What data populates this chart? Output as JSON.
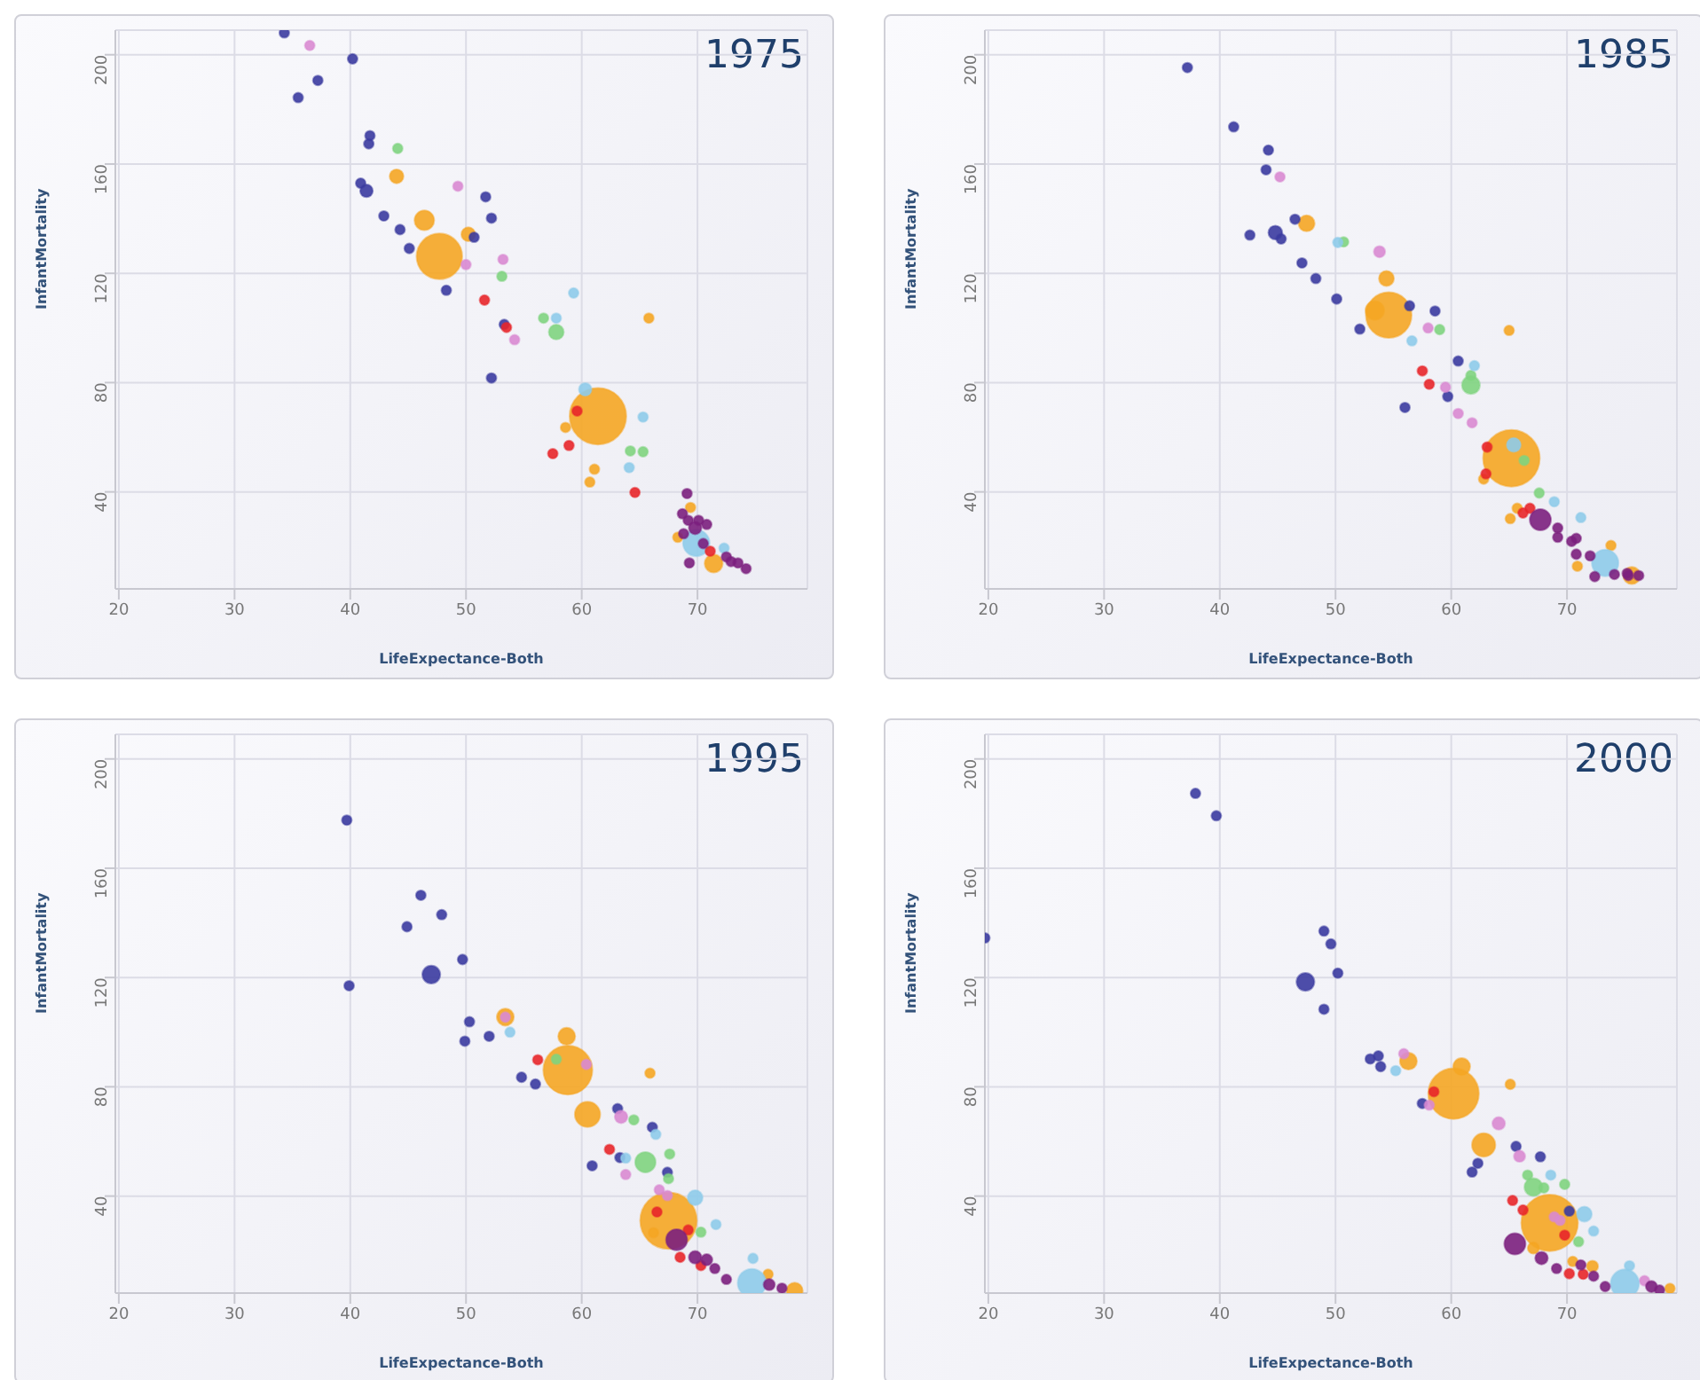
{
  "chart_data": [
    {
      "type": "bubble",
      "title": "1975",
      "xlabel": "LifeExpectance-Both",
      "ylabel": "InfantMortality",
      "xlim": [
        19.7,
        79.5
      ],
      "ylim": [
        4.5,
        209
      ],
      "xticks": [
        20,
        30,
        40,
        50,
        60,
        70
      ],
      "yticks": [
        40,
        80,
        120,
        160,
        200
      ],
      "grid": true,
      "series": [
        {
          "color": "#f5a623",
          "x": [
            44,
            46.4,
            47.7,
            50.2,
            61.4,
            58.6,
            61.1,
            60.7,
            65.8,
            69.4,
            68.3,
            71.4
          ],
          "values": [
            155.5,
            139.4,
            126.2,
            134.3,
            67.7,
            63.6,
            48.3,
            43.6,
            103.6,
            34.3,
            23.4,
            13.8
          ],
          "sizes": [
            0.06,
            0.12,
            0.65,
            0.06,
            1,
            0.03,
            0.03,
            0.03,
            0.03,
            0.03,
            0.03,
            0.1
          ]
        },
        {
          "color": "#3b3ba0",
          "x": [
            34.3,
            40.2,
            37.2,
            35.5,
            41.7,
            41.6,
            40.9,
            41.4,
            42.9,
            44.3,
            45.1,
            51.7,
            52.2,
            50.7,
            48.3,
            53.3,
            52.2
          ],
          "values": [
            208,
            198.5,
            190.6,
            184.3,
            170.4,
            167.4,
            153,
            150.2,
            141,
            136,
            129.1,
            148,
            140.2,
            133.2,
            113.8,
            101.3,
            81.7
          ],
          "sizes": [
            0.03,
            0.03,
            0.03,
            0.03,
            0.03,
            0.03,
            0.03,
            0.05,
            0.03,
            0.03,
            0.03,
            0.03,
            0.03,
            0.03,
            0.03,
            0.03,
            0.03
          ]
        },
        {
          "color": "#d98ad2",
          "x": [
            36.5,
            49.3,
            50,
            53.2,
            54.2
          ],
          "values": [
            203.4,
            151.9,
            123.2,
            125.1,
            95.7
          ],
          "sizes": [
            0.03,
            0.03,
            0.03,
            0.03,
            0.03
          ]
        },
        {
          "color": "#7fd47f",
          "x": [
            44.1,
            53.1,
            56.7,
            57.8,
            64.2,
            65.3
          ],
          "values": [
            165.7,
            118.9,
            103.6,
            98.5,
            55,
            54.7
          ],
          "sizes": [
            0.03,
            0.03,
            0.03,
            0.07,
            0.03,
            0.03
          ]
        },
        {
          "color": "#8ecbea",
          "x": [
            59.3,
            57.8,
            60.3,
            65.3,
            64.1,
            72.3,
            69.9
          ],
          "values": [
            112.8,
            103.6,
            77.5,
            67.4,
            48.9,
            19.4,
            21.3
          ],
          "sizes": [
            0.03,
            0.03,
            0.05,
            0.03,
            0.03,
            0.03,
            0.22
          ]
        },
        {
          "color": "#e8262a",
          "x": [
            51.6,
            53.5,
            59.6,
            58.9,
            57.5,
            64.6,
            71.1
          ],
          "values": [
            110.2,
            100.2,
            69.6,
            57,
            54,
            39.8,
            18.3
          ],
          "sizes": [
            0.03,
            0.03,
            0.03,
            0.03,
            0.03,
            0.03,
            0.03
          ]
        },
        {
          "color": "#7b1f7e",
          "x": [
            69.1,
            68.7,
            69.2,
            70.1,
            70.8,
            69.8,
            68.8,
            69.3,
            72.5,
            72.9,
            73.5,
            74.2,
            70.5
          ],
          "values": [
            39.4,
            32,
            29.6,
            29.6,
            28.1,
            26.8,
            24.7,
            14,
            16.2,
            14.5,
            14,
            11.9,
            21.1
          ],
          "sizes": [
            0.03,
            0.03,
            0.03,
            0.03,
            0.03,
            0.05,
            0.03,
            0.03,
            0.03,
            0.03,
            0.03,
            0.03,
            0.03
          ]
        }
      ]
    },
    {
      "type": "bubble",
      "title": "1985",
      "xlabel": "LifeExpectance-Both",
      "ylabel": "InfantMortality",
      "xlim": [
        19.7,
        79.5
      ],
      "ylim": [
        4.5,
        209
      ],
      "xticks": [
        20,
        30,
        40,
        50,
        60,
        70
      ],
      "yticks": [
        40,
        80,
        120,
        160,
        200
      ],
      "grid": true,
      "series": [
        {
          "color": "#f5a623",
          "x": [
            47.5,
            54.4,
            53.4,
            54.6,
            65,
            65.2,
            62.8,
            65.7,
            65.1,
            73.8,
            70.9,
            75.6
          ],
          "values": [
            138.3,
            118.1,
            106.4,
            104.7,
            99.1,
            52.3,
            44.7,
            34,
            30.2,
            20.4,
            12.8,
            9.4
          ],
          "sizes": [
            0.08,
            0.07,
            0.11,
            0.65,
            0.03,
            1,
            0.03,
            0.03,
            0.03,
            0.03,
            0.03,
            0.09
          ]
        },
        {
          "color": "#3b3ba0",
          "x": [
            37.2,
            41.2,
            44.2,
            44,
            46.5,
            42.6,
            44.8,
            45.3,
            47.1,
            48.3,
            50.1,
            56.4,
            58.6,
            52.1,
            60.6,
            59.7,
            56
          ],
          "values": [
            195.3,
            173.6,
            165.1,
            157.9,
            139.8,
            134,
            134.9,
            132.6,
            123.8,
            118.1,
            110.6,
            108.1,
            106.2,
            99.6,
            87.9,
            74.9,
            70.9
          ],
          "sizes": [
            0.03,
            0.03,
            0.03,
            0.03,
            0.03,
            0.03,
            0.06,
            0.03,
            0.03,
            0.03,
            0.03,
            0.03,
            0.03,
            0.03,
            0.03,
            0.03,
            0.03
          ]
        },
        {
          "color": "#d98ad2",
          "x": [
            45.2,
            53.8,
            58,
            59.5,
            60.6,
            61.8
          ],
          "values": [
            155.3,
            127.9,
            100,
            78.3,
            68.7,
            65.3
          ],
          "sizes": [
            0.03,
            0.04,
            0.03,
            0.03,
            0.03,
            0.03
          ]
        },
        {
          "color": "#7fd47f",
          "x": [
            50.7,
            59,
            61.7,
            61.7,
            66.3,
            67.6
          ],
          "values": [
            131.5,
            99.4,
            82.6,
            79.1,
            51.5,
            39.6
          ],
          "sizes": [
            0.03,
            0.03,
            0.03,
            0.1,
            0.03,
            0.03
          ]
        },
        {
          "color": "#8ecbea",
          "x": [
            50.2,
            56.6,
            62,
            65.4,
            68.9,
            71.2,
            73.3
          ],
          "values": [
            131.3,
            95.3,
            86.2,
            57.2,
            36.4,
            30.6,
            14
          ],
          "sizes": [
            0.03,
            0.03,
            0.03,
            0.06,
            0.03,
            0.03,
            0.22
          ]
        },
        {
          "color": "#e8262a",
          "x": [
            57.5,
            58.1,
            63.1,
            63,
            66.8,
            66.2
          ],
          "values": [
            84.3,
            79.4,
            56.4,
            46.6,
            34,
            32.3
          ],
          "sizes": [
            0.03,
            0.03,
            0.03,
            0.03,
            0.03,
            0.03
          ]
        },
        {
          "color": "#7b1f7e",
          "x": [
            67.7,
            69.2,
            69.2,
            70.4,
            70.8,
            70.8,
            72,
            72.4,
            74.1,
            75.3,
            76.2,
            75.2
          ],
          "values": [
            29.8,
            26.8,
            23.4,
            21.9,
            23,
            17.2,
            16.6,
            9,
            9.8,
            9.4,
            9.4,
            10.2
          ],
          "sizes": [
            0.14,
            0.03,
            0.03,
            0.03,
            0.03,
            0.03,
            0.03,
            0.03,
            0.03,
            0.03,
            0.03,
            0.03
          ]
        }
      ]
    },
    {
      "type": "bubble",
      "title": "1995",
      "xlabel": "LifeExpectance-Both",
      "ylabel": "InfantMortality",
      "xlim": [
        19.7,
        79.5
      ],
      "ylim": [
        4.5,
        209
      ],
      "xticks": [
        20,
        30,
        40,
        50,
        60,
        70
      ],
      "yticks": [
        40,
        80,
        120,
        160,
        200
      ],
      "grid": true,
      "series": [
        {
          "color": "#f5a623",
          "x": [
            53.4,
            58.7,
            58.8,
            60.5,
            65.9,
            67.5,
            66.2,
            76.1,
            78.4
          ],
          "values": [
            105.5,
            98.5,
            86.1,
            69.9,
            85,
            31,
            26.6,
            11.4,
            5.4
          ],
          "sizes": [
            0.09,
            0.09,
            0.75,
            0.2,
            0.03,
            1,
            0.03,
            0.03,
            0.08
          ]
        },
        {
          "color": "#3b3ba0",
          "x": [
            39.7,
            39.9,
            46.1,
            47.9,
            44.9,
            49.7,
            47,
            50.3,
            49.9,
            52,
            54.8,
            56,
            63.1,
            66.1,
            63.3,
            60.9,
            67.4
          ],
          "values": [
            177.6,
            117,
            150.1,
            143,
            138.6,
            126.6,
            121.1,
            103.8,
            96.7,
            98.5,
            83.5,
            81,
            72,
            65.2,
            54.1,
            51.1,
            48.7
          ],
          "sizes": [
            0.03,
            0.03,
            0.03,
            0.03,
            0.03,
            0.03,
            0.1,
            0.03,
            0.03,
            0.03,
            0.03,
            0.03,
            0.03,
            0.03,
            0.03,
            0.03,
            0.03
          ]
        },
        {
          "color": "#d98ad2",
          "x": [
            53.4,
            60.4,
            63.4,
            63.8,
            66.7,
            67.4
          ],
          "values": [
            105.5,
            88.2,
            69,
            47.9,
            42.3,
            40.2
          ],
          "sizes": [
            0.03,
            0.03,
            0.05,
            0.03,
            0.03,
            0.03
          ]
        },
        {
          "color": "#7fd47f",
          "x": [
            57.8,
            64.5,
            65.5,
            67.6,
            67.5,
            70.3
          ],
          "values": [
            90.1,
            67.9,
            52.4,
            55.4,
            46.4,
            26.8
          ],
          "sizes": [
            0.03,
            0.03,
            0.13,
            0.03,
            0.03,
            0.03
          ]
        },
        {
          "color": "#8ecbea",
          "x": [
            53.8,
            66.4,
            63.8,
            69.8,
            71.6,
            74.8,
            74.7
          ],
          "values": [
            100,
            62.6,
            53.9,
            39.4,
            29.6,
            17.2,
            8.2
          ],
          "sizes": [
            0.03,
            0.03,
            0.03,
            0.07,
            0.03,
            0.03,
            0.25
          ]
        },
        {
          "color": "#e8262a",
          "x": [
            56.2,
            62.4,
            66.5,
            69.2,
            68.5,
            70.3
          ],
          "values": [
            89.9,
            57.1,
            34.2,
            27.6,
            17.6,
            14.6
          ],
          "sizes": [
            0.03,
            0.03,
            0.03,
            0.03,
            0.03,
            0.03
          ]
        },
        {
          "color": "#7b1f7e",
          "x": [
            68.2,
            69.8,
            70.8,
            71.5,
            72.5,
            76.2,
            77.3
          ],
          "values": [
            24,
            17.6,
            16.7,
            13.5,
            9.5,
            7.6,
            6.3
          ],
          "sizes": [
            0.14,
            0.05,
            0.04,
            0.03,
            0.03,
            0.04,
            0.03
          ]
        }
      ]
    },
    {
      "type": "bubble",
      "title": "2000",
      "xlabel": "LifeExpectance-Both",
      "ylabel": "InfantMortality",
      "xlim": [
        19.7,
        79.5
      ],
      "ylim": [
        4.5,
        209
      ],
      "xticks": [
        20,
        30,
        40,
        50,
        60,
        70
      ],
      "yticks": [
        40,
        80,
        120,
        160,
        200
      ],
      "grid": true,
      "series": [
        {
          "color": "#f5a623",
          "x": [
            56.3,
            60.9,
            60.2,
            65.1,
            62.8,
            68.5,
            67.1,
            72.2,
            70.5,
            78.9
          ],
          "values": [
            89.4,
            87.4,
            77.5,
            80.9,
            58.7,
            30.2,
            21,
            14.3,
            16.1,
            6.2
          ],
          "sizes": [
            0.09,
            0.09,
            0.8,
            0.03,
            0.17,
            1,
            0.04,
            0.04,
            0.03,
            0.03
          ]
        },
        {
          "color": "#3b3ba0",
          "x": [
            19.7,
            37.9,
            39.7,
            49,
            49.6,
            50.2,
            47.4,
            49,
            53,
            53.7,
            53.9,
            57.5,
            65.6,
            67.7,
            62.3,
            61.8,
            70.2
          ],
          "values": [
            134.5,
            187.4,
            179.2,
            137,
            132.3,
            121.6,
            118.4,
            108.4,
            90.2,
            91.3,
            87.4,
            73.9,
            58.2,
            54.4,
            52,
            48.8,
            34.5
          ],
          "sizes": [
            0.03,
            0.03,
            0.03,
            0.03,
            0.03,
            0.03,
            0.1,
            0.03,
            0.03,
            0.03,
            0.03,
            0.03,
            0.03,
            0.03,
            0.03,
            0.03,
            0.03
          ]
        },
        {
          "color": "#d98ad2",
          "x": [
            55.9,
            58.1,
            64.1,
            65.9,
            68.9,
            69.4,
            76.7
          ],
          "values": [
            92.1,
            73.3,
            66.6,
            54.6,
            32.4,
            31.1,
            9
          ],
          "sizes": [
            0.03,
            0.03,
            0.05,
            0.04,
            0.03,
            0.03,
            0.03
          ]
        },
        {
          "color": "#7fd47f",
          "x": [
            66.6,
            67.1,
            68,
            69.8,
            71
          ],
          "values": [
            47.7,
            43.3,
            43,
            44.3,
            23.3
          ],
          "sizes": [
            0.03,
            0.1,
            0.03,
            0.03,
            0.03
          ]
        },
        {
          "color": "#8ecbea",
          "x": [
            55.2,
            68.6,
            71.5,
            72.3,
            75.4,
            75
          ],
          "values": [
            85.9,
            47.7,
            33.4,
            27.2,
            14.5,
            8
          ],
          "sizes": [
            0.03,
            0.03,
            0.07,
            0.03,
            0.03,
            0.25
          ]
        },
        {
          "color": "#e8262a",
          "x": [
            58.5,
            65.3,
            66.2,
            69.8,
            70.2,
            71.4
          ],
          "values": [
            78.2,
            38.4,
            34.9,
            25.7,
            11.6,
            11.4
          ],
          "sizes": [
            0.03,
            0.03,
            0.03,
            0.03,
            0.03,
            0.03
          ]
        },
        {
          "color": "#7b1f7e",
          "x": [
            65.5,
            67.8,
            69.1,
            71.2,
            72.3,
            73.3,
            77.3,
            78
          ],
          "values": [
            22.5,
            17.3,
            13.5,
            14.8,
            10.7,
            6.9,
            6.9,
            5.6
          ],
          "sizes": [
            0.14,
            0.05,
            0.03,
            0.03,
            0.03,
            0.03,
            0.04,
            0.03
          ]
        }
      ]
    }
  ]
}
